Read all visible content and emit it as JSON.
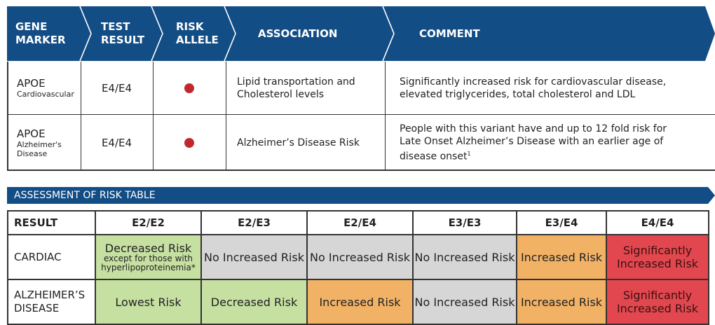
{
  "colors": {
    "header_blue": "#134d85",
    "green": "#c6e0a2",
    "grey": "#d6d6d6",
    "orange": "#f2b266",
    "red": "#e2474f",
    "dot_red": "#c0282d"
  },
  "header": {
    "gene_marker": "GENE MARKER",
    "test_result": "TEST RESULT",
    "risk_allele": "RISK ALLELE",
    "association": "ASSOCIATION",
    "comment": "COMMENT"
  },
  "markers": [
    {
      "gene": "APOE",
      "sub": "Cardiovascular",
      "result": "E4/E4",
      "risk_allele": "red-dot-icon",
      "association": "Lipid transportation and Cholesterol levels",
      "comment": "Significantly increased risk for cardiovascular disease, elevated triglycerides, total cholesterol and LDL"
    },
    {
      "gene": "APOE",
      "sub": "Alzheimer's Disease",
      "result": "E4/E4",
      "risk_allele": "red-dot-icon",
      "association": "Alzheimer’s Disease Risk",
      "comment": "People with this variant have and up to 12 fold risk for Late Onset Alzheimer’s Disease with an earlier age of disease onset",
      "comment_sup": "1"
    }
  ],
  "assessment": {
    "title": "ASSESSMENT OF RISK TABLE",
    "result_label": "RESULT",
    "genotypes": [
      "E2/E2",
      "E2/E3",
      "E2/E4",
      "E3/E3",
      "E3/E4",
      "E4/E4"
    ],
    "cardiac": {
      "label": "CARDIAC",
      "cells": [
        {
          "text": "Decreased Risk",
          "note": "except for those with hyperlipoproteinemia*",
          "color": "green"
        },
        {
          "text": "No Increased Risk",
          "color": "grey"
        },
        {
          "text": "No Increased Risk",
          "color": "grey"
        },
        {
          "text": "No Increased Risk",
          "color": "grey"
        },
        {
          "text": "Increased Risk",
          "color": "orange"
        },
        {
          "text": "Significantly Increased Risk",
          "color": "red"
        }
      ]
    },
    "alzheimers": {
      "label": "ALZHEIMER’S DISEASE",
      "cells": [
        {
          "text": "Lowest Risk",
          "color": "green"
        },
        {
          "text": "Decreased Risk",
          "color": "green"
        },
        {
          "text": "Increased Risk",
          "color": "orange"
        },
        {
          "text": "No Increased Risk",
          "color": "grey"
        },
        {
          "text": "Increased Risk",
          "color": "orange"
        },
        {
          "text": "Significantly Increased Risk",
          "color": "red"
        }
      ]
    }
  }
}
